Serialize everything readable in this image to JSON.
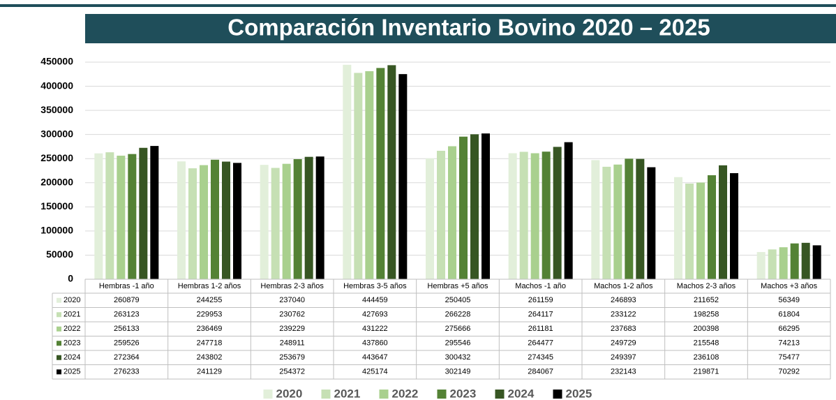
{
  "chart_data": {
    "type": "bar",
    "title": "Comparación Inventario Bovino 2020 – 2025",
    "categories": [
      "Hembras -1 año",
      "Hembras 1-2 años",
      "Hembras 2-3 años",
      "Hembras 3-5 años",
      "Hembras +5 años",
      "Machos -1 año",
      "Machos 1-2 años",
      "Machos 2-3 años",
      "Machos +3 años"
    ],
    "series": [
      {
        "name": "2020",
        "color": "#e2efda",
        "values": [
          260879,
          244255,
          237040,
          444459,
          250405,
          261159,
          246893,
          211652,
          56349
        ]
      },
      {
        "name": "2021",
        "color": "#c6e0b4",
        "values": [
          263123,
          229953,
          230762,
          427693,
          266228,
          264117,
          233122,
          198258,
          61804
        ]
      },
      {
        "name": "2022",
        "color": "#a9d08e",
        "values": [
          256133,
          236469,
          239229,
          431222,
          275666,
          261181,
          237683,
          200398,
          66295
        ]
      },
      {
        "name": "2023",
        "color": "#548235",
        "values": [
          259526,
          247718,
          248911,
          437860,
          295546,
          264477,
          249729,
          215548,
          74213
        ]
      },
      {
        "name": "2024",
        "color": "#375623",
        "values": [
          272364,
          243802,
          253679,
          443647,
          300432,
          274345,
          249397,
          236108,
          75477
        ]
      },
      {
        "name": "2025",
        "color": "#000000",
        "values": [
          276233,
          241129,
          254372,
          425174,
          302149,
          284067,
          232143,
          219871,
          70292
        ]
      }
    ],
    "ylim": [
      0,
      450000
    ],
    "yticks": [
      0,
      50000,
      100000,
      150000,
      200000,
      250000,
      300000,
      350000,
      400000,
      450000
    ],
    "grid": true
  }
}
